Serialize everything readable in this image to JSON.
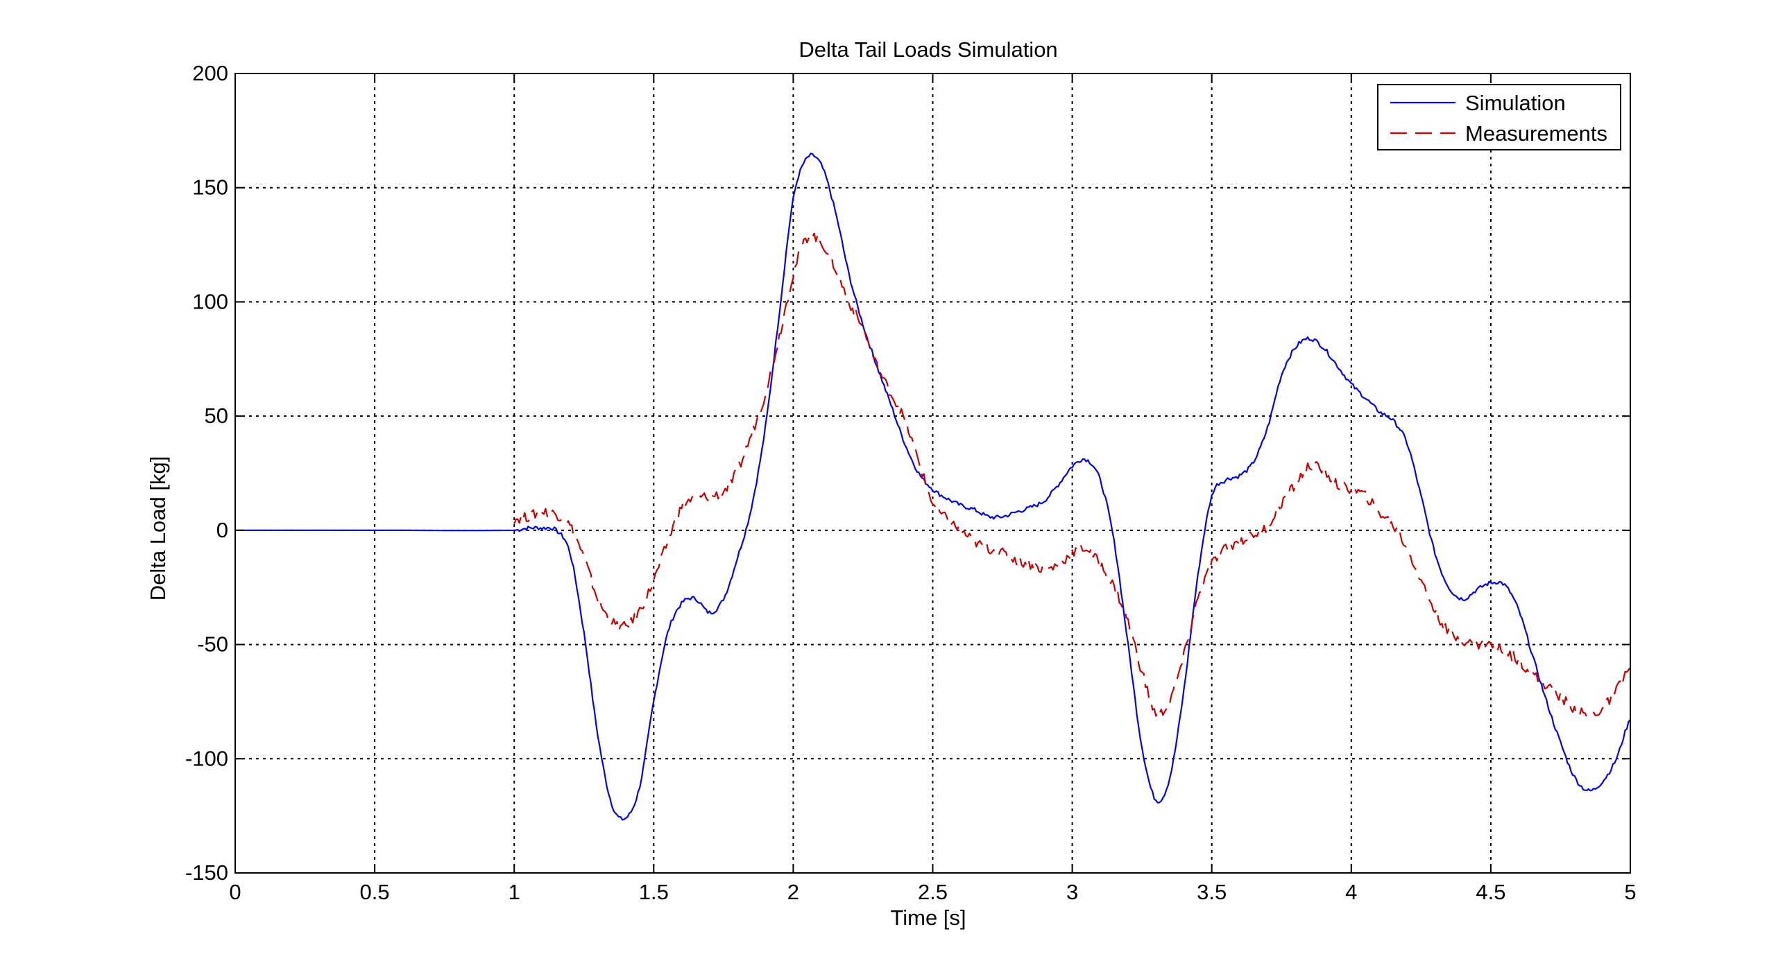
{
  "chart_data": {
    "type": "line",
    "title": "Delta Tail Loads Simulation",
    "xlabel": "Time [s]",
    "ylabel": "Delta Load [kg]",
    "xlim": [
      0,
      5
    ],
    "ylim": [
      -150,
      200
    ],
    "xticks": [
      0,
      0.5,
      1,
      1.5,
      2,
      2.5,
      3,
      3.5,
      4,
      4.5,
      5
    ],
    "xtick_labels": [
      "0",
      "0.5",
      "1",
      "1.5",
      "2",
      "2.5",
      "3",
      "3.5",
      "4",
      "4.5",
      "5"
    ],
    "yticks": [
      -150,
      -100,
      -50,
      0,
      50,
      100,
      150,
      200
    ],
    "ytick_labels": [
      "-150",
      "-100",
      "-50",
      "0",
      "50",
      "100",
      "150",
      "200"
    ],
    "grid": true,
    "legend_position": "top-right",
    "series": [
      {
        "name": "Simulation",
        "color": "#0000ff",
        "line_style": "solid",
        "points": [
          [
            0,
            0
          ],
          [
            0.5,
            0
          ],
          [
            1,
            0
          ],
          [
            1.05,
            1
          ],
          [
            1.1,
            1
          ],
          [
            1.15,
            0
          ],
          [
            1.2,
            -10
          ],
          [
            1.25,
            -45
          ],
          [
            1.3,
            -90
          ],
          [
            1.35,
            -120
          ],
          [
            1.4,
            -126
          ],
          [
            1.45,
            -112
          ],
          [
            1.5,
            -75
          ],
          [
            1.55,
            -45
          ],
          [
            1.6,
            -32
          ],
          [
            1.65,
            -30
          ],
          [
            1.7,
            -36
          ],
          [
            1.75,
            -30
          ],
          [
            1.8,
            -12
          ],
          [
            1.85,
            10
          ],
          [
            1.9,
            45
          ],
          [
            1.95,
            95
          ],
          [
            2,
            145
          ],
          [
            2.05,
            163
          ],
          [
            2.1,
            160
          ],
          [
            2.15,
            140
          ],
          [
            2.2,
            112
          ],
          [
            2.25,
            90
          ],
          [
            2.3,
            72
          ],
          [
            2.35,
            55
          ],
          [
            2.4,
            38
          ],
          [
            2.45,
            25
          ],
          [
            2.5,
            18
          ],
          [
            2.55,
            14
          ],
          [
            2.6,
            11
          ],
          [
            2.65,
            9
          ],
          [
            2.7,
            6
          ],
          [
            2.75,
            6
          ],
          [
            2.8,
            8
          ],
          [
            2.85,
            10
          ],
          [
            2.9,
            13
          ],
          [
            2.95,
            20
          ],
          [
            3,
            28
          ],
          [
            3.05,
            31
          ],
          [
            3.1,
            22
          ],
          [
            3.15,
            -5
          ],
          [
            3.2,
            -50
          ],
          [
            3.25,
            -95
          ],
          [
            3.3,
            -118
          ],
          [
            3.35,
            -108
          ],
          [
            3.4,
            -70
          ],
          [
            3.45,
            -20
          ],
          [
            3.5,
            15
          ],
          [
            3.55,
            22
          ],
          [
            3.6,
            24
          ],
          [
            3.65,
            30
          ],
          [
            3.7,
            45
          ],
          [
            3.75,
            68
          ],
          [
            3.8,
            80
          ],
          [
            3.85,
            84
          ],
          [
            3.9,
            80
          ],
          [
            3.95,
            72
          ],
          [
            4,
            64
          ],
          [
            4.05,
            58
          ],
          [
            4.1,
            52
          ],
          [
            4.15,
            48
          ],
          [
            4.2,
            38
          ],
          [
            4.25,
            15
          ],
          [
            4.3,
            -10
          ],
          [
            4.35,
            -25
          ],
          [
            4.4,
            -30
          ],
          [
            4.45,
            -26
          ],
          [
            4.5,
            -23
          ],
          [
            4.55,
            -24
          ],
          [
            4.6,
            -35
          ],
          [
            4.65,
            -55
          ],
          [
            4.7,
            -75
          ],
          [
            4.75,
            -93
          ],
          [
            4.8,
            -108
          ],
          [
            4.85,
            -114
          ],
          [
            4.9,
            -110
          ],
          [
            4.95,
            -100
          ],
          [
            5,
            -83
          ]
        ]
      },
      {
        "name": "Measurements",
        "color": "#cc0000",
        "line_style": "dashed",
        "points": [
          [
            1,
            5
          ],
          [
            1.05,
            6
          ],
          [
            1.1,
            8
          ],
          [
            1.15,
            7
          ],
          [
            1.2,
            2
          ],
          [
            1.25,
            -12
          ],
          [
            1.3,
            -30
          ],
          [
            1.35,
            -40
          ],
          [
            1.4,
            -42
          ],
          [
            1.45,
            -35
          ],
          [
            1.5,
            -22
          ],
          [
            1.55,
            -5
          ],
          [
            1.6,
            10
          ],
          [
            1.65,
            14
          ],
          [
            1.7,
            15
          ],
          [
            1.75,
            17
          ],
          [
            1.8,
            26
          ],
          [
            1.85,
            42
          ],
          [
            1.9,
            60
          ],
          [
            1.95,
            85
          ],
          [
            2,
            112
          ],
          [
            2.05,
            128
          ],
          [
            2.1,
            126
          ],
          [
            2.15,
            115
          ],
          [
            2.2,
            100
          ],
          [
            2.25,
            88
          ],
          [
            2.3,
            72
          ],
          [
            2.35,
            60
          ],
          [
            2.4,
            48
          ],
          [
            2.45,
            30
          ],
          [
            2.5,
            12
          ],
          [
            2.55,
            5
          ],
          [
            2.6,
            0
          ],
          [
            2.65,
            -5
          ],
          [
            2.7,
            -8
          ],
          [
            2.75,
            -10
          ],
          [
            2.8,
            -13
          ],
          [
            2.85,
            -15
          ],
          [
            2.9,
            -17
          ],
          [
            2.95,
            -15
          ],
          [
            3,
            -10
          ],
          [
            3.05,
            -8
          ],
          [
            3.1,
            -15
          ],
          [
            3.15,
            -25
          ],
          [
            3.2,
            -40
          ],
          [
            3.25,
            -62
          ],
          [
            3.3,
            -80
          ],
          [
            3.35,
            -74
          ],
          [
            3.4,
            -55
          ],
          [
            3.45,
            -30
          ],
          [
            3.5,
            -15
          ],
          [
            3.55,
            -8
          ],
          [
            3.6,
            -5
          ],
          [
            3.65,
            -2
          ],
          [
            3.7,
            2
          ],
          [
            3.75,
            12
          ],
          [
            3.8,
            20
          ],
          [
            3.85,
            28
          ],
          [
            3.9,
            26
          ],
          [
            3.95,
            20
          ],
          [
            4,
            18
          ],
          [
            4.05,
            15
          ],
          [
            4.1,
            8
          ],
          [
            4.15,
            2
          ],
          [
            4.2,
            -8
          ],
          [
            4.25,
            -22
          ],
          [
            4.3,
            -35
          ],
          [
            4.35,
            -45
          ],
          [
            4.4,
            -48
          ],
          [
            4.45,
            -50
          ],
          [
            4.5,
            -50
          ],
          [
            4.55,
            -53
          ],
          [
            4.6,
            -57
          ],
          [
            4.65,
            -63
          ],
          [
            4.7,
            -68
          ],
          [
            4.75,
            -73
          ],
          [
            4.8,
            -78
          ],
          [
            4.85,
            -81
          ],
          [
            4.9,
            -78
          ],
          [
            4.95,
            -70
          ],
          [
            5,
            -60
          ]
        ]
      }
    ]
  }
}
